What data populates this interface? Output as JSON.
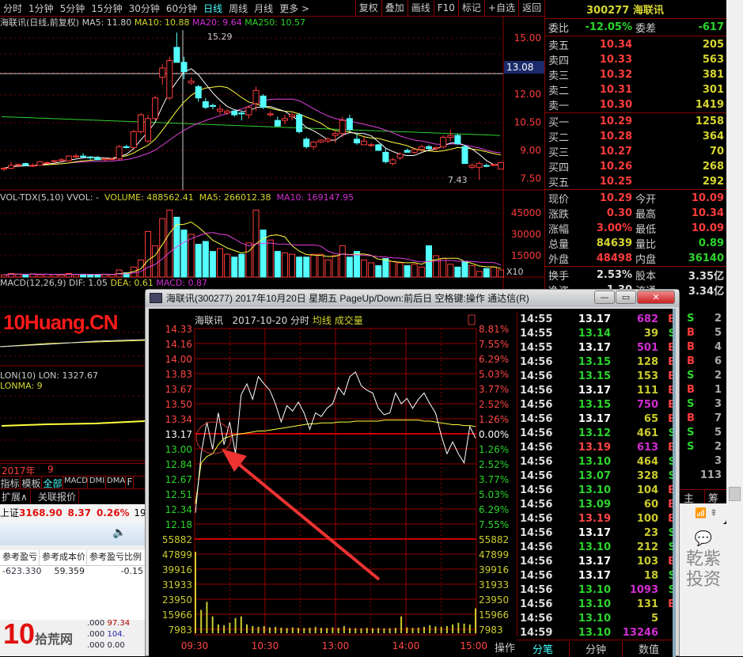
{
  "watermark": "10Huang.CN",
  "toolbar": {
    "periods": [
      "分时",
      "1分钟",
      "5分钟",
      "15分钟",
      "30分钟",
      "60分钟",
      "日线",
      "周线",
      "月线",
      "更多 >"
    ],
    "active": "日线",
    "buttons": [
      "复权",
      "叠加",
      "画线",
      "F10",
      "标记",
      "+自选",
      "返回"
    ]
  },
  "kline": {
    "legend": {
      "title": "海联讯(日线,前复权)",
      "ma5": "MA5: 11.80",
      "ma10": "MA10: 10.88",
      "ma20": "MA20: 9.64",
      "ma250": "MA250: 10.57"
    },
    "y_ticks": [
      "15.00",
      "12.00",
      "10.50",
      "9.00",
      "7.50"
    ],
    "cursor_price": "13.08",
    "high_label": "15.29",
    "low_label": "7.43",
    "colors": {
      "up": "#ff3c3c",
      "down": "#54ffff",
      "ma5": "#ffffff",
      "ma10": "#ffff40",
      "ma20": "#e040e0",
      "ma250": "#30d030"
    },
    "candles": [
      [
        8.0,
        8.1,
        7.9,
        8.05
      ],
      [
        8.05,
        8.4,
        8.0,
        8.2
      ],
      [
        8.2,
        8.3,
        8.1,
        8.25
      ],
      [
        8.3,
        8.35,
        8.15,
        8.2
      ],
      [
        8.2,
        8.3,
        8.1,
        8.2
      ],
      [
        8.2,
        8.45,
        8.2,
        8.4
      ],
      [
        8.35,
        8.4,
        8.3,
        8.35
      ],
      [
        8.4,
        8.5,
        8.35,
        8.45
      ],
      [
        8.45,
        8.6,
        8.4,
        8.5
      ],
      [
        8.45,
        8.75,
        8.4,
        8.7
      ],
      [
        8.7,
        8.8,
        8.6,
        8.7
      ],
      [
        8.7,
        8.85,
        8.6,
        8.65
      ],
      [
        8.65,
        8.7,
        8.5,
        8.6
      ],
      [
        8.6,
        8.7,
        8.5,
        8.5
      ],
      [
        8.5,
        8.6,
        8.45,
        8.55
      ],
      [
        8.55,
        8.6,
        8.5,
        8.55
      ],
      [
        8.55,
        9.3,
        8.5,
        9.2
      ],
      [
        9.2,
        9.3,
        9.1,
        9.15
      ],
      [
        9.15,
        10.1,
        9.1,
        10.0
      ],
      [
        10.0,
        11.0,
        9.9,
        10.9
      ],
      [
        9.5,
        10.9,
        9.4,
        10.7
      ],
      [
        10.7,
        11.9,
        10.6,
        11.8
      ],
      [
        12.9,
        13.6,
        12.5,
        13.4
      ],
      [
        11.8,
        14.0,
        11.7,
        13.8
      ],
      [
        14.5,
        15.29,
        13.7,
        13.7
      ],
      [
        13.7,
        14.0,
        12.8,
        13.2
      ],
      [
        12.6,
        12.9,
        12.5,
        12.7
      ],
      [
        12.4,
        12.5,
        11.6,
        11.8
      ],
      [
        11.6,
        11.8,
        11.2,
        11.3
      ],
      [
        11.4,
        11.5,
        11.2,
        11.35
      ],
      [
        11.1,
        11.4,
        10.9,
        11.2
      ],
      [
        11.0,
        11.2,
        10.9,
        11.1
      ],
      [
        11.1,
        11.2,
        10.8,
        10.9
      ],
      [
        11.0,
        11.1,
        10.6,
        10.95
      ],
      [
        10.9,
        11.4,
        10.7,
        11.3
      ],
      [
        11.5,
        12.4,
        11.1,
        12.2
      ],
      [
        11.9,
        12.0,
        11.2,
        11.3
      ],
      [
        10.9,
        11.1,
        10.8,
        10.95
      ],
      [
        10.6,
        10.8,
        10.3,
        10.3
      ],
      [
        10.6,
        10.9,
        10.4,
        10.7
      ],
      [
        10.8,
        11.0,
        10.6,
        10.9
      ],
      [
        10.9,
        11.0,
        9.9,
        10.0
      ],
      [
        9.6,
        9.7,
        9.1,
        9.2
      ],
      [
        9.2,
        9.5,
        9.05,
        9.45
      ],
      [
        9.45,
        9.6,
        9.4,
        9.55
      ],
      [
        9.5,
        9.7,
        9.4,
        9.6
      ],
      [
        9.8,
        10.0,
        9.4,
        9.9
      ],
      [
        9.9,
        10.8,
        9.7,
        10.6
      ],
      [
        10.7,
        10.9,
        10.0,
        10.1
      ],
      [
        9.6,
        9.9,
        9.3,
        9.4
      ],
      [
        9.3,
        9.7,
        9.3,
        9.5
      ],
      [
        9.3,
        9.4,
        9.2,
        9.3
      ],
      [
        9.3,
        9.35,
        9.0,
        9.0
      ],
      [
        8.9,
        9.1,
        8.3,
        8.4
      ],
      [
        8.3,
        8.6,
        8.2,
        8.5
      ],
      [
        8.6,
        8.9,
        8.5,
        8.8
      ],
      [
        9.0,
        9.1,
        8.9,
        8.9
      ],
      [
        8.9,
        9.1,
        8.8,
        9.05
      ],
      [
        9.05,
        9.3,
        8.9,
        9.2
      ],
      [
        9.2,
        9.3,
        9.0,
        9.1
      ],
      [
        9.1,
        9.2,
        9.0,
        9.15
      ],
      [
        9.2,
        9.8,
        9.1,
        9.7
      ],
      [
        9.7,
        10.1,
        9.5,
        9.8
      ],
      [
        9.8,
        9.9,
        9.3,
        9.35
      ],
      [
        9.2,
        9.3,
        8.3,
        8.3
      ],
      [
        8.1,
        8.3,
        8.0,
        8.2
      ],
      [
        8.1,
        8.4,
        7.43,
        8.3
      ],
      [
        8.2,
        8.3,
        8.1,
        8.15
      ],
      [
        8.2,
        8.3,
        8.15,
        8.25
      ],
      [
        8.0,
        8.4,
        8.0,
        8.35
      ]
    ],
    "ma250": [
      10.8,
      9.8
    ]
  },
  "volume": {
    "legend": {
      "title": "VOL-TDX(5,10) VVOL: -",
      "volume": "VOLUME: 488562.41",
      "ma5": "MA5: 266012.38",
      "ma10": "MA10: 169147.95"
    },
    "y_ticks": [
      "45000",
      "30000",
      "15000"
    ],
    "unit": "X10",
    "values": [
      1500,
      2500,
      2000,
      1800,
      2200,
      1600,
      2000,
      1800,
      1500,
      2500,
      1700,
      2000,
      1600,
      1800,
      2000,
      1700,
      5000,
      3000,
      7000,
      12000,
      32000,
      22000,
      41000,
      47000,
      42000,
      33000,
      30000,
      23000,
      25000,
      18000,
      20000,
      16000,
      14000,
      16000,
      24000,
      47000,
      33000,
      26000,
      18000,
      17000,
      16000,
      14000,
      14000,
      16000,
      16000,
      12000,
      15000,
      22000,
      14000,
      18000,
      12000,
      10000,
      8000,
      13000,
      11000,
      10000,
      8000,
      9000,
      7000,
      22000,
      15000,
      13000,
      9000,
      7000,
      11000,
      8000,
      4000,
      6000,
      7000,
      5000
    ]
  },
  "macd": {
    "legend": {
      "title": "MACD(12,26,9)",
      "dif": "DIF: 1.05",
      "dea": "DEA: 0.61",
      "macd": "MACD: 0.87"
    }
  },
  "lon": {
    "legend": {
      "title": "LON(10)",
      "lon": "LON: 1327.67",
      "lonma": "LONMA: 9"
    }
  },
  "bottom_left": {
    "date_axis": [
      "2017年",
      "9"
    ],
    "tabs": [
      "指标",
      "模板",
      "全部",
      "MACD",
      "DMI",
      "DMA",
      "F"
    ],
    "active_tab": "全部",
    "ext_tabs": [
      "扩展∧",
      "关联报价"
    ],
    "index": {
      "name": "上证",
      "price": "3168.90",
      "change": "8.37",
      "pct": "0.26%",
      "extra": "19"
    },
    "table": {
      "headers": [
        "参考盈亏",
        "参考成本价",
        "参考盈亏比例"
      ],
      "row": [
        "-623.330",
        "59.359",
        "-0.15"
      ],
      "extra": [
        ".000",
        "97.34",
        ".000",
        "104.",
        ".000",
        "0.00"
      ]
    }
  },
  "book": {
    "code": "300277",
    "name": "海联讯",
    "weibi_label": "委比",
    "weibi": "-12.05%",
    "weicha_label": "委差",
    "weicha": "-617",
    "asks": [
      {
        "label": "卖五",
        "price": "10.34",
        "vol": "205"
      },
      {
        "label": "卖四",
        "price": "10.33",
        "vol": "563"
      },
      {
        "label": "卖三",
        "price": "10.32",
        "vol": "381"
      },
      {
        "label": "卖二",
        "price": "10.31",
        "vol": "301"
      },
      {
        "label": "卖一",
        "price": "10.30",
        "vol": "1419"
      }
    ],
    "bids": [
      {
        "label": "买一",
        "price": "10.29",
        "vol": "1258"
      },
      {
        "label": "买二",
        "price": "10.28",
        "vol": "364"
      },
      {
        "label": "买三",
        "price": "10.27",
        "vol": "70"
      },
      {
        "label": "买四",
        "price": "10.26",
        "vol": "268"
      },
      {
        "label": "买五",
        "price": "10.25",
        "vol": "292"
      }
    ],
    "stats": [
      [
        "现价",
        "10.29",
        "今开",
        "10.09"
      ],
      [
        "涨跌",
        "0.30",
        "最高",
        "10.34"
      ],
      [
        "涨幅",
        "3.00%",
        "最低",
        "10.09"
      ],
      [
        "总量",
        "84639",
        "量比",
        "0.89"
      ],
      [
        "外盘",
        "48498",
        "内盘",
        "36140"
      ]
    ],
    "turnover": [
      "换手",
      "2.53%",
      "股本",
      "3.35亿"
    ],
    "float": [
      "净资",
      "1.30",
      "流通",
      "3.34亿"
    ]
  },
  "popup": {
    "title": "海联讯(300277) 2017年10月20日 星期五 PageUp/Down:前后日 空格键:操作 通达信(R)",
    "header": {
      "name": "海联讯",
      "date": "2017-10-20 分时",
      "avg": "均线",
      "vol": "成交量"
    },
    "price_ticks": [
      "14.33",
      "14.16",
      "14.00",
      "13.83",
      "13.67",
      "13.50",
      "13.34",
      "13.17",
      "13.00",
      "12.84",
      "12.67",
      "12.51",
      "12.34",
      "12.18"
    ],
    "pct_ticks": [
      "8.81%",
      "7.55%",
      "6.29%",
      "5.03%",
      "3.77%",
      "2.52%",
      "1.26%",
      "0.00%",
      "1.26%",
      "2.52%",
      "3.77%",
      "5.03%",
      "6.29%",
      "7.55%"
    ],
    "vol_ticks": [
      "55882",
      "47899",
      "39916",
      "31933",
      "23950",
      "15966",
      "7983"
    ],
    "time_ticks": [
      "09:30",
      "10:30",
      "13:00",
      "14:00",
      "15:00"
    ],
    "prev_close": 13.17,
    "price": [
      12.3,
      12.95,
      13.3,
      13.0,
      13.4,
      13.05,
      13.3,
      12.95,
      13.6,
      13.72,
      13.55,
      13.8,
      13.72,
      13.65,
      13.5,
      13.3,
      13.48,
      13.42,
      13.52,
      13.4,
      13.22,
      13.4,
      13.36,
      13.45,
      13.5,
      13.68,
      13.6,
      13.8,
      13.85,
      13.7,
      13.65,
      13.62,
      13.45,
      13.38,
      13.4,
      13.62,
      13.5,
      13.56,
      13.45,
      13.55,
      13.62,
      13.5,
      13.4,
      13.15,
      12.95,
      13.08,
      12.95,
      12.85,
      13.25,
      13.12
    ],
    "avg": [
      12.4,
      12.85,
      12.92,
      12.95,
      13.05,
      13.12,
      13.14,
      13.16,
      13.17,
      13.18,
      13.19,
      13.2,
      13.2,
      13.21,
      13.22,
      13.23,
      13.24,
      13.25,
      13.26,
      13.27,
      13.28,
      13.28,
      13.29,
      13.29,
      13.29,
      13.3,
      13.3,
      13.3,
      13.31,
      13.31,
      13.31,
      13.31,
      13.31,
      13.32,
      13.32,
      13.32,
      13.32,
      13.32,
      13.32,
      13.32,
      13.31,
      13.31,
      13.3,
      13.29,
      13.28,
      13.27,
      13.27,
      13.26,
      13.26,
      13.25
    ],
    "vols": [
      48000,
      12000,
      17000,
      8000,
      3000,
      2500,
      4000,
      7000,
      8000,
      3000,
      2000,
      1500,
      2000,
      1200,
      1500,
      1000,
      800,
      1200,
      900,
      800,
      1000,
      1500,
      900,
      800,
      1200,
      1000,
      2000,
      800,
      700,
      600,
      900,
      700,
      800,
      600,
      700,
      900,
      8000,
      1200,
      900,
      1000,
      1500,
      2500,
      1800,
      1500,
      2000,
      3000,
      4000,
      3500,
      3000,
      13000
    ],
    "tab_op": "操作",
    "ticks": [
      [
        "14:55",
        "13.17",
        "682",
        "B"
      ],
      [
        "14:55",
        "13.14",
        "39",
        "S"
      ],
      [
        "14:55",
        "13.17",
        "501",
        "B"
      ],
      [
        "14:56",
        "13.15",
        "128",
        "B"
      ],
      [
        "14:56",
        "13.15",
        "153",
        "B"
      ],
      [
        "14:56",
        "13.17",
        "111",
        "B"
      ],
      [
        "14:56",
        "13.15",
        "750",
        "B"
      ],
      [
        "14:56",
        "13.17",
        "65",
        "B"
      ],
      [
        "14:56",
        "13.12",
        "461",
        "S"
      ],
      [
        "14:56",
        "13.19",
        "613",
        "B"
      ],
      [
        "14:56",
        "13.10",
        "464",
        "S"
      ],
      [
        "14:56",
        "13.07",
        "328",
        "S"
      ],
      [
        "14:56",
        "13.10",
        "104",
        "B"
      ],
      [
        "14:56",
        "13.09",
        "60",
        "B"
      ],
      [
        "14:56",
        "13.19",
        "100",
        "B"
      ],
      [
        "14:56",
        "13.17",
        "23",
        "S"
      ],
      [
        "14:56",
        "13.10",
        "212",
        "S"
      ],
      [
        "14:56",
        "13.17",
        "103",
        "B"
      ],
      [
        "14:56",
        "13.17",
        "18",
        "S"
      ],
      [
        "14:56",
        "13.10",
        "1093",
        "S"
      ],
      [
        "14:56",
        "13.10",
        "131",
        "B"
      ],
      [
        "14:56",
        "13.10",
        "5",
        ""
      ],
      [
        "14:59",
        "13.10",
        "13246",
        ""
      ]
    ],
    "bottom_tabs": [
      "分笔",
      "分钟",
      "数值"
    ],
    "active_bottom": "分笔"
  },
  "side_strip": {
    "rows": [
      [
        "S",
        "2"
      ],
      [
        "B",
        "5"
      ],
      [
        "B",
        "4"
      ],
      [
        "B",
        "6"
      ],
      [
        "S",
        "2"
      ],
      [
        "B",
        "1"
      ],
      [
        "S",
        "3"
      ],
      [
        "B",
        "7"
      ],
      [
        "S",
        "5"
      ],
      [
        "S",
        "2"
      ],
      [
        "",
        "3"
      ],
      [
        "",
        "113"
      ]
    ],
    "tabs": [
      "主",
      "筹"
    ]
  },
  "wechat_watermark": "乾紫投资"
}
